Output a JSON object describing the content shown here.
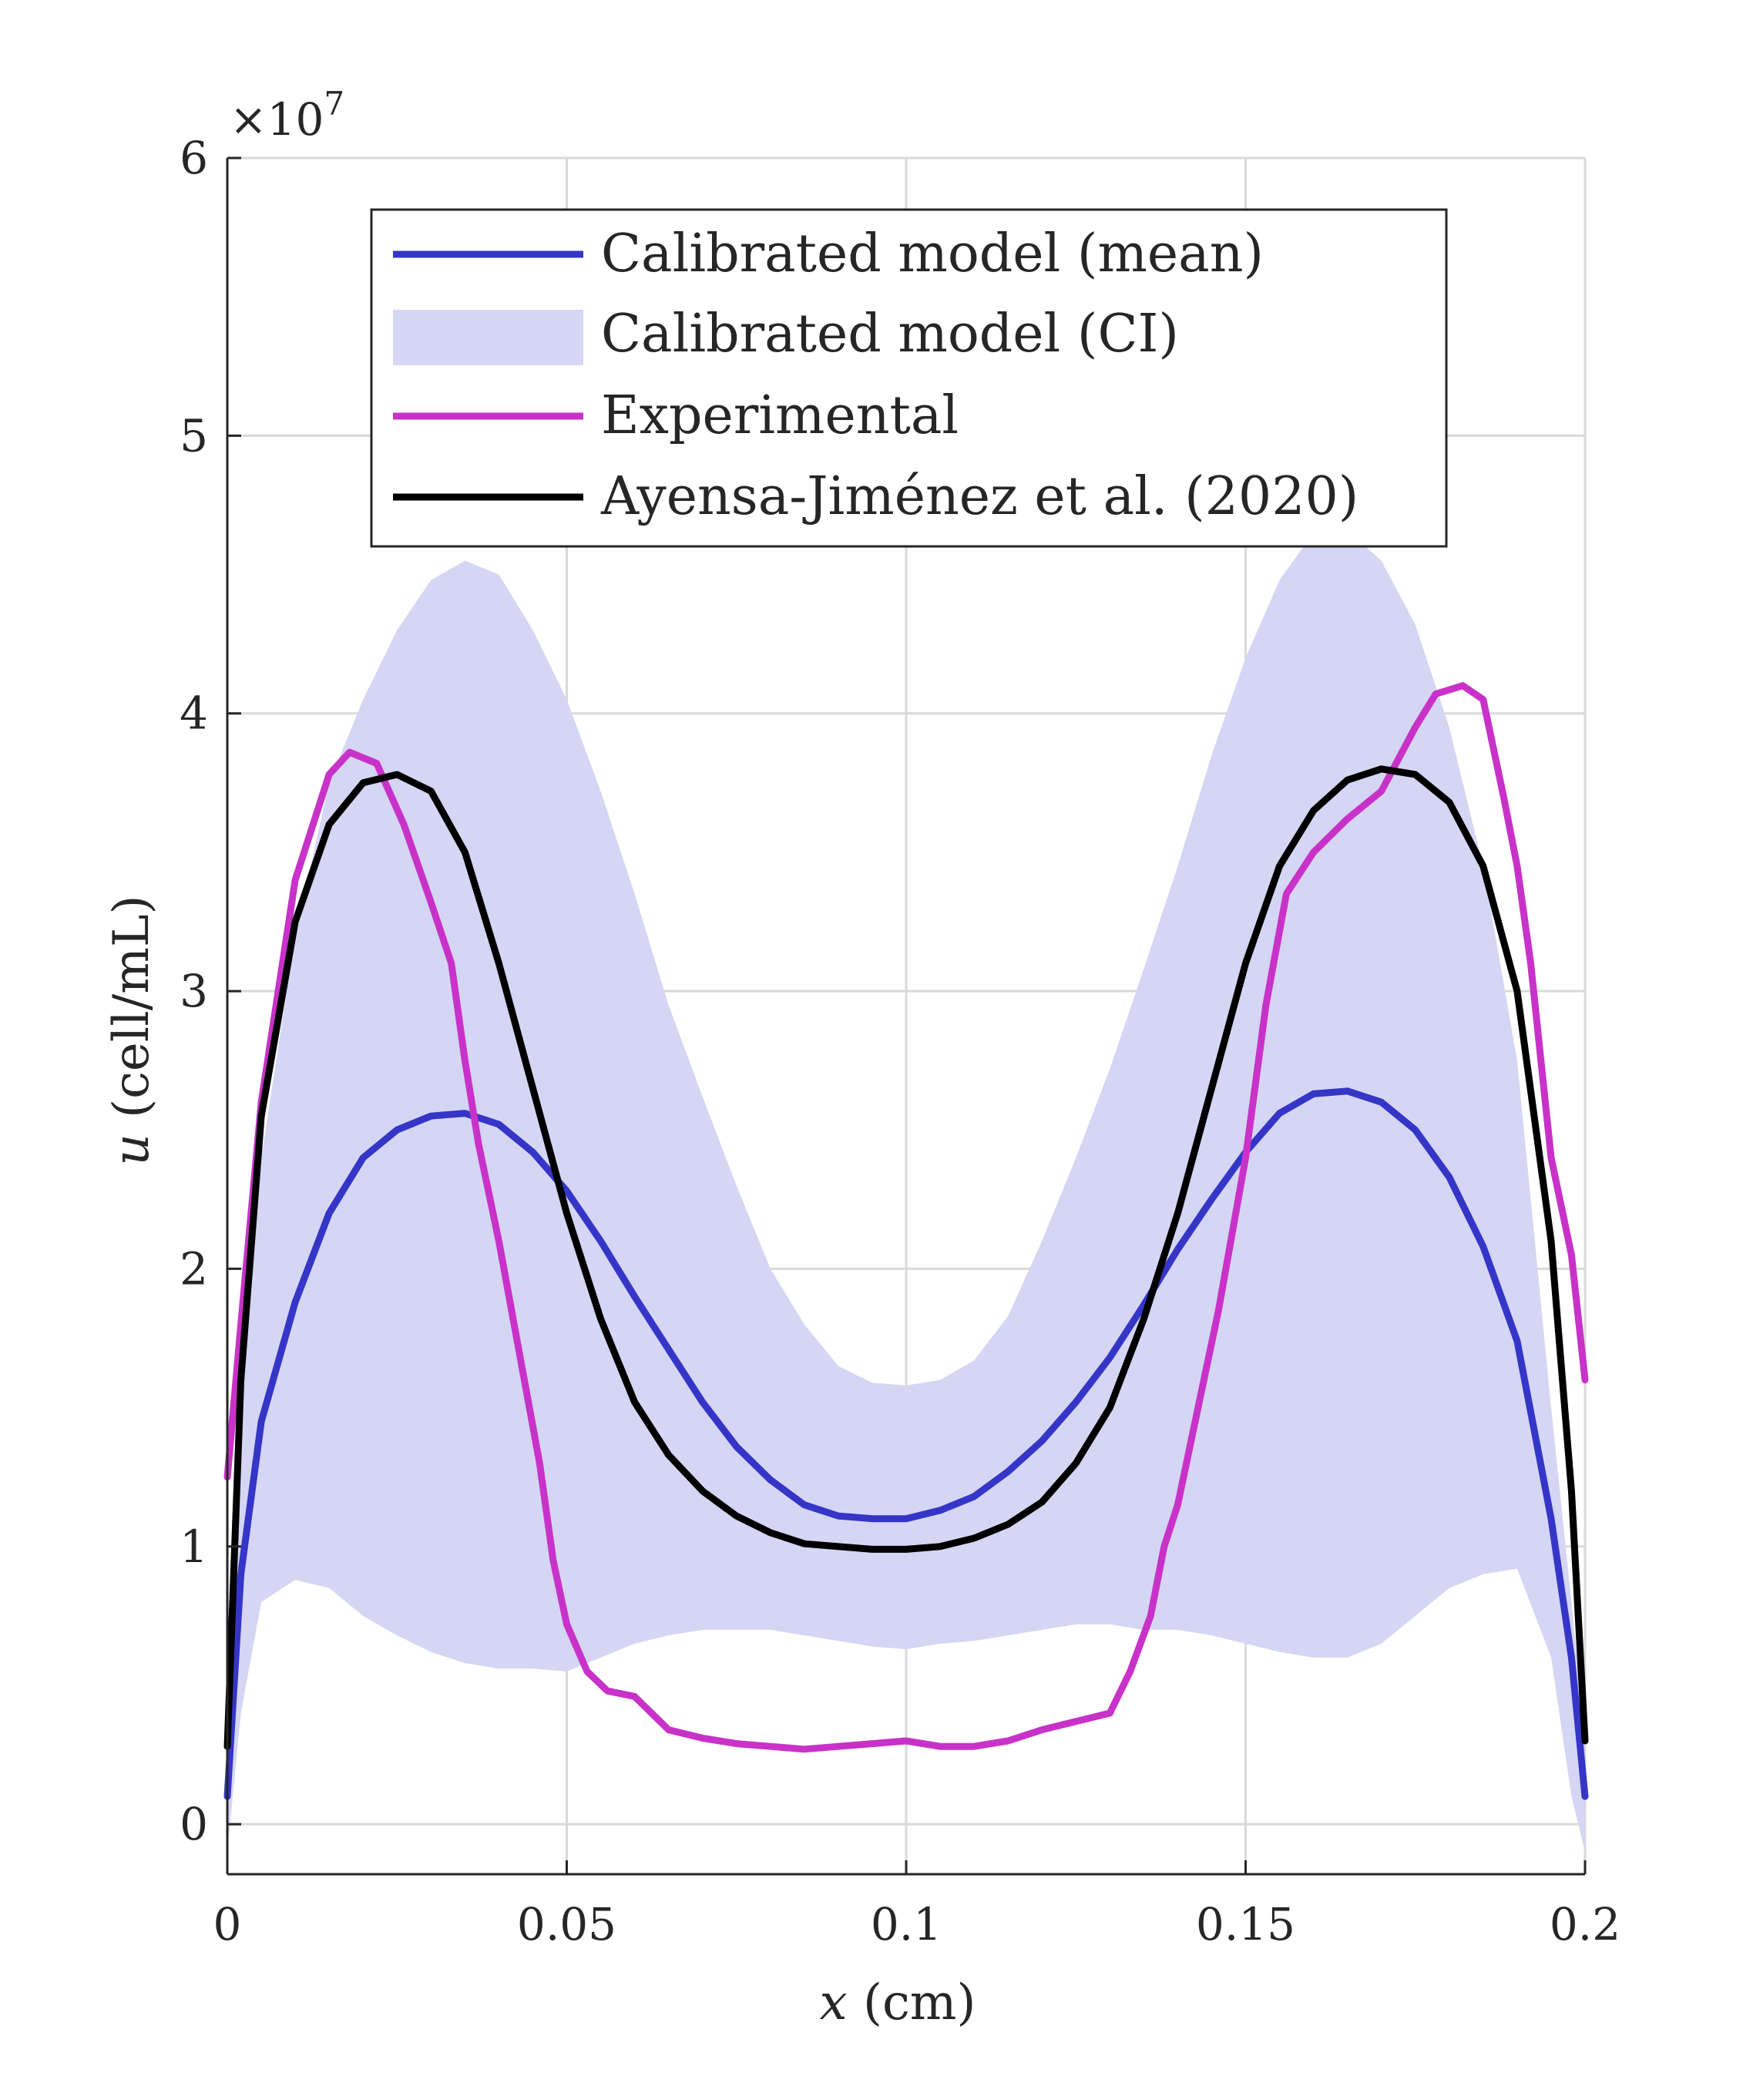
{
  "chart_data": {
    "type": "line",
    "xlabel_var": "x",
    "xlabel_unit": "(cm)",
    "ylabel_var": "u",
    "ylabel_unit": "(cell/mL)",
    "y_exponent_label": "×10",
    "y_exponent_power": "7",
    "xlim": [
      0,
      0.2
    ],
    "ylim": [
      -0.18,
      6
    ],
    "x_ticks": [
      0,
      0.05,
      0.1,
      0.15,
      0.2
    ],
    "x_tick_labels": [
      "0",
      "0.05",
      "0.1",
      "0.15",
      "0.2"
    ],
    "y_ticks": [
      0,
      1,
      2,
      3,
      4,
      5,
      6
    ],
    "y_tick_labels": [
      "0",
      "1",
      "2",
      "3",
      "4",
      "5",
      "6"
    ],
    "grid": true,
    "legend_position": "top-center",
    "series": [
      {
        "name": "Calibrated model (mean)",
        "kind": "line",
        "color": "#3535c8",
        "x": [
          0,
          0.002,
          0.005,
          0.01,
          0.015,
          0.02,
          0.025,
          0.03,
          0.035,
          0.04,
          0.045,
          0.05,
          0.055,
          0.06,
          0.065,
          0.07,
          0.075,
          0.08,
          0.085,
          0.09,
          0.095,
          0.1,
          0.105,
          0.11,
          0.115,
          0.12,
          0.125,
          0.13,
          0.135,
          0.14,
          0.145,
          0.15,
          0.155,
          0.16,
          0.165,
          0.17,
          0.175,
          0.18,
          0.185,
          0.19,
          0.195,
          0.198,
          0.2
        ],
        "y": [
          0.1,
          0.9,
          1.45,
          1.88,
          2.2,
          2.4,
          2.5,
          2.55,
          2.56,
          2.52,
          2.42,
          2.28,
          2.1,
          1.9,
          1.71,
          1.52,
          1.36,
          1.24,
          1.15,
          1.11,
          1.1,
          1.1,
          1.13,
          1.18,
          1.27,
          1.38,
          1.52,
          1.68,
          1.87,
          2.07,
          2.25,
          2.42,
          2.56,
          2.63,
          2.64,
          2.6,
          2.5,
          2.33,
          2.08,
          1.74,
          1.1,
          0.6,
          0.1
        ]
      },
      {
        "name": "Calibrated model (CI)",
        "kind": "band",
        "color": "#d5d6f4",
        "x": [
          0,
          0.002,
          0.005,
          0.01,
          0.015,
          0.02,
          0.025,
          0.03,
          0.035,
          0.04,
          0.045,
          0.05,
          0.055,
          0.06,
          0.065,
          0.07,
          0.075,
          0.08,
          0.085,
          0.09,
          0.095,
          0.1,
          0.105,
          0.11,
          0.115,
          0.12,
          0.125,
          0.13,
          0.135,
          0.14,
          0.145,
          0.15,
          0.155,
          0.16,
          0.165,
          0.17,
          0.175,
          0.18,
          0.185,
          0.19,
          0.195,
          0.198,
          0.2
        ],
        "lower": [
          -0.1,
          0.4,
          0.8,
          0.88,
          0.85,
          0.75,
          0.68,
          0.62,
          0.58,
          0.56,
          0.56,
          0.55,
          0.6,
          0.65,
          0.68,
          0.7,
          0.7,
          0.7,
          0.68,
          0.66,
          0.64,
          0.63,
          0.65,
          0.66,
          0.68,
          0.7,
          0.72,
          0.72,
          0.7,
          0.7,
          0.68,
          0.65,
          0.62,
          0.6,
          0.6,
          0.65,
          0.75,
          0.85,
          0.9,
          0.92,
          0.6,
          0.1,
          -0.1
        ],
        "upper": [
          0.5,
          1.6,
          2.4,
          3.2,
          3.75,
          4.05,
          4.3,
          4.48,
          4.55,
          4.5,
          4.3,
          4.05,
          3.72,
          3.35,
          2.95,
          2.62,
          2.3,
          2.0,
          1.8,
          1.65,
          1.59,
          1.58,
          1.6,
          1.67,
          1.83,
          2.1,
          2.4,
          2.72,
          3.08,
          3.45,
          3.85,
          4.2,
          4.48,
          4.65,
          4.66,
          4.55,
          4.32,
          3.95,
          3.45,
          2.75,
          1.5,
          0.8,
          0.3
        ]
      },
      {
        "name": "Experimental",
        "kind": "line",
        "color": "#c832c8",
        "x": [
          0,
          0.002,
          0.005,
          0.01,
          0.015,
          0.018,
          0.022,
          0.026,
          0.03,
          0.033,
          0.035,
          0.037,
          0.04,
          0.043,
          0.046,
          0.048,
          0.05,
          0.053,
          0.056,
          0.06,
          0.065,
          0.07,
          0.075,
          0.08,
          0.085,
          0.09,
          0.095,
          0.1,
          0.105,
          0.11,
          0.115,
          0.12,
          0.125,
          0.13,
          0.133,
          0.136,
          0.138,
          0.14,
          0.143,
          0.146,
          0.15,
          0.153,
          0.156,
          0.16,
          0.165,
          0.17,
          0.175,
          0.178,
          0.182,
          0.185,
          0.188,
          0.19,
          0.192,
          0.195,
          0.198,
          0.2
        ],
        "y": [
          1.25,
          1.8,
          2.6,
          3.4,
          3.78,
          3.86,
          3.82,
          3.6,
          3.32,
          3.1,
          2.75,
          2.45,
          2.1,
          1.7,
          1.3,
          0.95,
          0.72,
          0.55,
          0.48,
          0.46,
          0.34,
          0.31,
          0.29,
          0.28,
          0.27,
          0.28,
          0.29,
          0.3,
          0.28,
          0.28,
          0.3,
          0.34,
          0.37,
          0.4,
          0.55,
          0.75,
          1.0,
          1.15,
          1.5,
          1.85,
          2.4,
          2.95,
          3.35,
          3.5,
          3.62,
          3.72,
          3.95,
          4.07,
          4.1,
          4.05,
          3.7,
          3.45,
          3.1,
          2.4,
          2.05,
          1.6
        ]
      },
      {
        "name": "Ayensa-Jiménez et al. (2020)",
        "kind": "line",
        "color": "#000000",
        "x": [
          0,
          0.002,
          0.005,
          0.01,
          0.015,
          0.02,
          0.025,
          0.03,
          0.035,
          0.04,
          0.045,
          0.05,
          0.055,
          0.06,
          0.065,
          0.07,
          0.075,
          0.08,
          0.085,
          0.09,
          0.095,
          0.1,
          0.105,
          0.11,
          0.115,
          0.12,
          0.125,
          0.13,
          0.135,
          0.14,
          0.145,
          0.15,
          0.155,
          0.16,
          0.165,
          0.17,
          0.175,
          0.18,
          0.185,
          0.19,
          0.195,
          0.198,
          0.2
        ],
        "y": [
          0.28,
          1.6,
          2.55,
          3.25,
          3.6,
          3.75,
          3.78,
          3.72,
          3.5,
          3.1,
          2.65,
          2.2,
          1.82,
          1.52,
          1.33,
          1.2,
          1.11,
          1.05,
          1.01,
          1.0,
          0.99,
          0.99,
          1.0,
          1.03,
          1.08,
          1.16,
          1.3,
          1.5,
          1.82,
          2.2,
          2.65,
          3.1,
          3.45,
          3.65,
          3.76,
          3.8,
          3.78,
          3.68,
          3.45,
          3.0,
          2.1,
          1.2,
          0.3
        ]
      }
    ]
  }
}
